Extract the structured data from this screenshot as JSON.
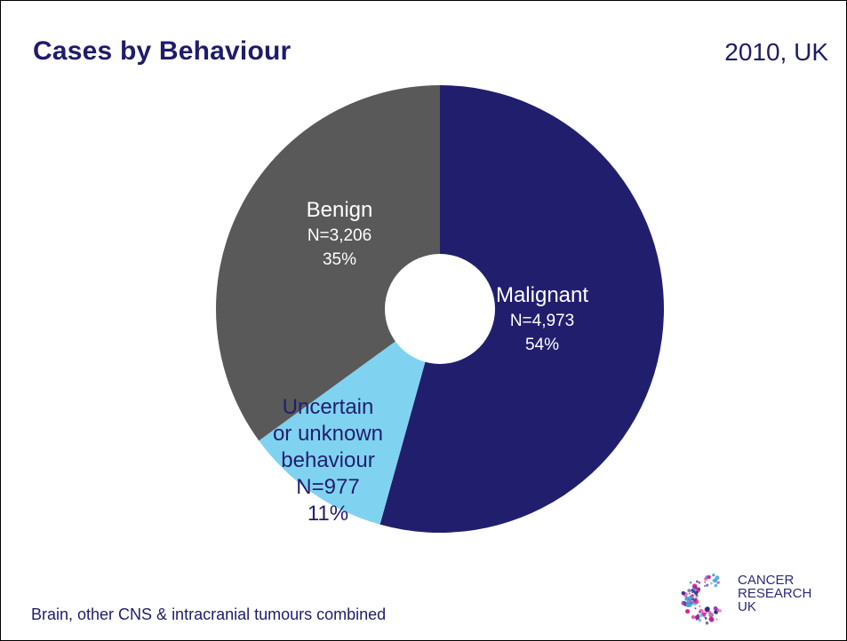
{
  "header": {
    "title": "Cases by Behaviour",
    "subtitle": "2010, UK"
  },
  "footer": {
    "note": "Brain, other CNS & intracranial tumours combined"
  },
  "logo": {
    "line1": "CANCER",
    "line2": "RESEARCH",
    "line3": "UK",
    "colors": [
      "#2b2a84",
      "#e0148a",
      "#8a2b9d",
      "#3aa0da"
    ]
  },
  "chart_data": {
    "type": "pie",
    "donut": true,
    "title": "Cases by Behaviour",
    "slices": [
      {
        "name": "Malignant",
        "n_label": "N=4,973",
        "pct_label": "54%",
        "value": 4973,
        "color": "#221e6e",
        "text_color": "#ffffff"
      },
      {
        "name_lines": [
          "Uncertain",
          "or unknown",
          "behaviour"
        ],
        "n_label": "N=977",
        "pct_label": "11%",
        "value": 977,
        "color": "#7fd3f0",
        "text_color": "#221e6e"
      },
      {
        "name": "Benign",
        "n_label": "N=3,206",
        "pct_label": "35%",
        "value": 3206,
        "color": "#595959",
        "text_color": "#ffffff"
      }
    ]
  }
}
